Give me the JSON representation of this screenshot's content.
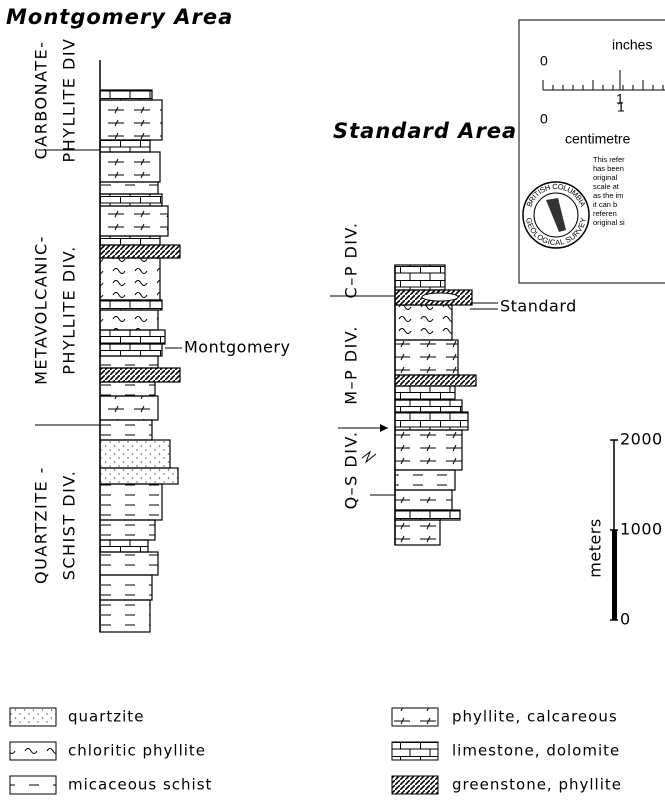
{
  "montgomery_area": {
    "title": "Montgomery Area",
    "divisions": [
      [
        "CARBONATE-",
        "PHYLLITE DIV"
      ],
      [
        "METAVOLCANIC-",
        "PHYLLITE DIV."
      ],
      [
        "QUARTZITE -",
        "SCHIST DIV."
      ]
    ],
    "marker": "Montgomery"
  },
  "standard_area": {
    "title": "Standard Area",
    "divisions": [
      "C–P DIV.",
      "M–P DIV.",
      "Q–S DIV."
    ],
    "marker": "Standard"
  },
  "scale_bar": {
    "unit": "meters",
    "ticks": [
      2000,
      1000,
      0
    ]
  },
  "legend": [
    "quartzite",
    "chloritic phyllite",
    "micaceous schist",
    "phyllite, calcareous",
    "limestone, dolomite",
    "greenstone, phyllite"
  ],
  "scale_box": {
    "inches": "inches",
    "inch_ticks": [
      0,
      1
    ],
    "cm_ticks": [
      0,
      1
    ],
    "centimetre": "centimetre",
    "note": [
      "This refer",
      "has been",
      "original",
      "scale at",
      "as the im",
      "it can b",
      "referen",
      "original si"
    ],
    "logo": [
      "BRITISH COLUMBIA",
      "GEOLOGICAL SURVEY"
    ]
  }
}
